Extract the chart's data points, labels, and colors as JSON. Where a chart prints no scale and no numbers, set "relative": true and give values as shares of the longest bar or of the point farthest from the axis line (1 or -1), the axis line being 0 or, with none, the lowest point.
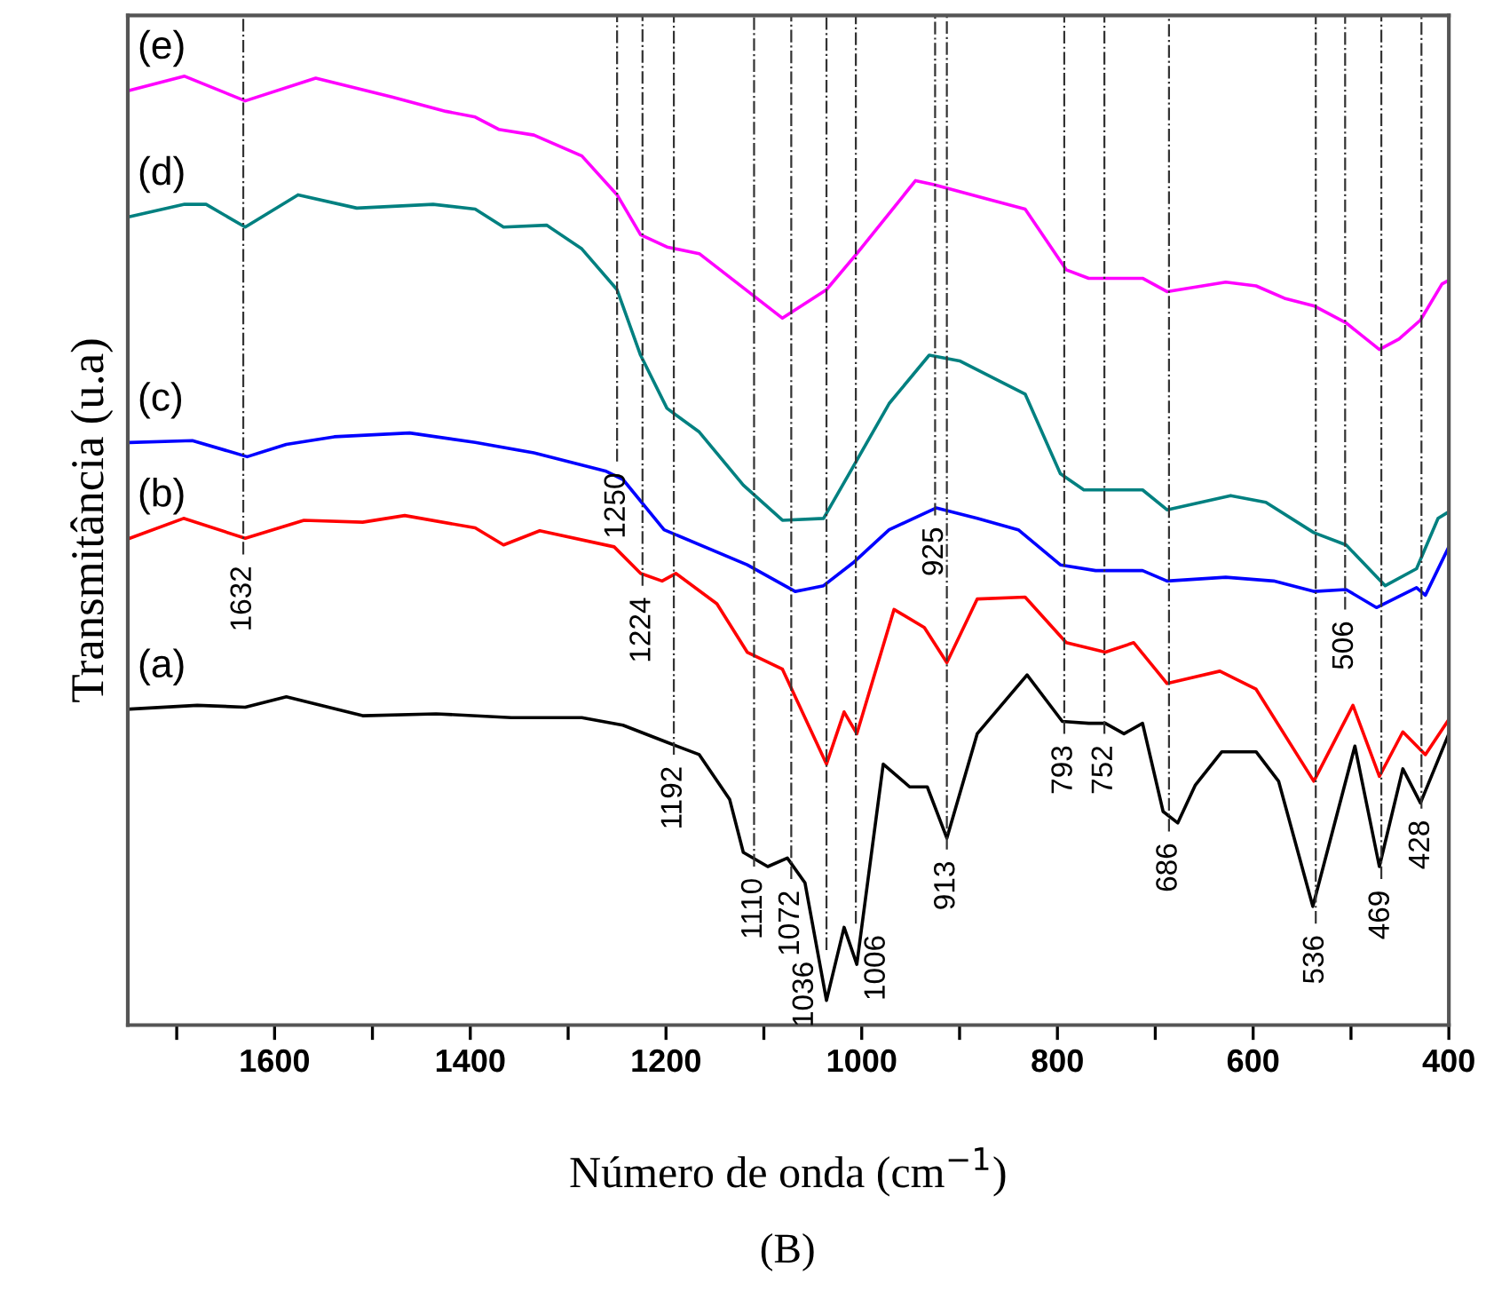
{
  "chart_data": {
    "type": "line",
    "relative": true,
    "xlabel": "Número de onda (cm$^{−1}$)",
    "ylabel": "Transmitância (u.a)",
    "xlim": [
      1750,
      400
    ],
    "xticks": [
      {
        "value": 1700,
        "label": null
      },
      1600,
      {
        "value": 1500,
        "label": null
      },
      1400,
      {
        "value": 1300,
        "label": null
      },
      1200,
      {
        "value": 1100,
        "label": null
      },
      1000,
      {
        "value": 900,
        "label": null
      },
      800,
      {
        "value": 700,
        "label": null
      },
      600,
      {
        "value": 500,
        "label": null
      },
      400
    ],
    "tick_labels": "x",
    "grid": false,
    "legend": false,
    "marker": "none",
    "line_style": "solid",
    "series": [
      {
        "name": "(a)",
        "color": "#000000",
        "x": [
          1748,
          1679,
          1630,
          1588,
          1510,
          1435,
          1358,
          1286,
          1244,
          1199,
          1166,
          1135,
          1121,
          1096,
          1076,
          1058,
          1036,
          1018,
          1005,
          978,
          951,
          933,
          913,
          882,
          831,
          795,
          768,
          751,
          732,
          713,
          692,
          677,
          659,
          632,
          597,
          574,
          539,
          496,
          471,
          447,
          429,
          400
        ],
        "values": [
          0.333,
          0.337,
          0.335,
          0.346,
          0.326,
          0.328,
          0.324,
          0.324,
          0.316,
          0.298,
          0.285,
          0.238,
          0.182,
          0.167,
          0.176,
          0.15,
          0.026,
          0.103,
          0.064,
          0.275,
          0.251,
          0.251,
          0.197,
          0.307,
          0.369,
          0.32,
          0.318,
          0.318,
          0.307,
          0.318,
          0.225,
          0.213,
          0.253,
          0.288,
          0.288,
          0.257,
          0.125,
          0.294,
          0.167,
          0.27,
          0.234,
          0.307
        ]
      },
      {
        "name": "(b)",
        "color": "#ff0000",
        "x": [
          1748,
          1693,
          1630,
          1570,
          1510,
          1467,
          1395,
          1366,
          1329,
          1253,
          1226,
          1204,
          1190,
          1148,
          1117,
          1081,
          1036,
          1018,
          1005,
          967,
          936,
          913,
          882,
          833,
          791,
          751,
          722,
          688,
          634,
          597,
          538,
          498,
          471,
          447,
          424,
          400
        ],
        "values": [
          0.513,
          0.534,
          0.513,
          0.532,
          0.53,
          0.537,
          0.524,
          0.506,
          0.521,
          0.504,
          0.476,
          0.468,
          0.476,
          0.444,
          0.393,
          0.375,
          0.275,
          0.33,
          0.307,
          0.438,
          0.419,
          0.382,
          0.449,
          0.451,
          0.403,
          0.393,
          0.403,
          0.36,
          0.373,
          0.354,
          0.257,
          0.337,
          0.262,
          0.309,
          0.285,
          0.322
        ]
      },
      {
        "name": "(c)",
        "color": "#0000ff",
        "x": [
          1748,
          1684,
          1628,
          1588,
          1539,
          1462,
          1395,
          1335,
          1262,
          1244,
          1202,
          1117,
          1068,
          1058,
          1039,
          1009,
          972,
          924,
          882,
          840,
          797,
          761,
          713,
          688,
          628,
          579,
          538,
          505,
          474,
          433,
          424,
          400
        ],
        "values": [
          0.614,
          0.616,
          0.599,
          0.612,
          0.62,
          0.624,
          0.614,
          0.603,
          0.584,
          0.575,
          0.522,
          0.485,
          0.457,
          0.459,
          0.463,
          0.487,
          0.522,
          0.545,
          0.534,
          0.522,
          0.485,
          0.479,
          0.479,
          0.468,
          0.472,
          0.468,
          0.457,
          0.459,
          0.44,
          0.461,
          0.453,
          0.504
        ]
      },
      {
        "name": "(d)",
        "color": "#008080",
        "x": [
          1748,
          1692,
          1670,
          1630,
          1576,
          1516,
          1438,
          1395,
          1366,
          1322,
          1286,
          1250,
          1226,
          1199,
          1166,
          1121,
          1081,
          1039,
          1009,
          972,
          931,
          900,
          833,
          797,
          773,
          713,
          688,
          623,
          587,
          538,
          505,
          465,
          433,
          411,
          400
        ],
        "values": [
          0.852,
          0.865,
          0.865,
          0.841,
          0.875,
          0.861,
          0.865,
          0.86,
          0.841,
          0.843,
          0.818,
          0.775,
          0.706,
          0.65,
          0.625,
          0.569,
          0.532,
          0.534,
          0.588,
          0.655,
          0.706,
          0.7,
          0.665,
          0.581,
          0.564,
          0.564,
          0.543,
          0.558,
          0.551,
          0.519,
          0.506,
          0.463,
          0.481,
          0.534,
          0.541
        ]
      },
      {
        "name": "(e)",
        "color": "#ff00ff",
        "x": [
          1748,
          1692,
          1630,
          1558,
          1480,
          1425,
          1395,
          1371,
          1335,
          1286,
          1250,
          1226,
          1199,
          1166,
          1121,
          1081,
          1036,
          1005,
          945,
          927,
          873,
          833,
          791,
          768,
          713,
          688,
          628,
          597,
          568,
          538,
          505,
          471,
          451,
          429,
          407,
          400
        ],
        "values": [
          0.985,
          1.0,
          0.974,
          0.998,
          0.978,
          0.963,
          0.957,
          0.944,
          0.938,
          0.916,
          0.875,
          0.833,
          0.82,
          0.813,
          0.777,
          0.745,
          0.775,
          0.813,
          0.89,
          0.886,
          0.871,
          0.86,
          0.796,
          0.787,
          0.787,
          0.773,
          0.783,
          0.779,
          0.766,
          0.758,
          0.74,
          0.712,
          0.723,
          0.743,
          0.781,
          0.785
        ]
      }
    ],
    "ref_lines": [
      {
        "axis": "x",
        "value": 1632
      },
      {
        "axis": "x",
        "value": 1250
      },
      {
        "axis": "x",
        "value": 1224
      },
      {
        "axis": "x",
        "value": 1192
      },
      {
        "axis": "x",
        "value": 1110
      },
      {
        "axis": "x",
        "value": 1072
      },
      {
        "axis": "x",
        "value": 1036
      },
      {
        "axis": "x",
        "value": 1006
      },
      {
        "axis": "x",
        "value": 925
      },
      {
        "axis": "x",
        "value": 913
      },
      {
        "axis": "x",
        "value": 793
      },
      {
        "axis": "x",
        "value": 752
      },
      {
        "axis": "x",
        "value": 686
      },
      {
        "axis": "x",
        "value": 536
      },
      {
        "axis": "x",
        "value": 506
      },
      {
        "axis": "x",
        "value": 469
      },
      {
        "axis": "x",
        "value": 428
      }
    ],
    "annotations": [
      {
        "text": "1632",
        "x": 1632,
        "y": 0.496
      },
      {
        "text": "1250",
        "x": 1250,
        "y": 0.594
      },
      {
        "text": "1224",
        "x": 1224,
        "y": 0.463
      },
      {
        "text": "1192",
        "x": 1192,
        "y": 0.285
      },
      {
        "text": "1110",
        "x": 1110,
        "y": 0.167
      },
      {
        "text": "1072",
        "x": 1072,
        "y": 0.154
      },
      {
        "text": "1036",
        "x": 1036,
        "y": 0.079
      },
      {
        "text": "1006",
        "x": 1006,
        "y": 0.107
      },
      {
        "text": "925",
        "x": 925,
        "y": 0.537
      },
      {
        "text": "913",
        "x": 913,
        "y": 0.185
      },
      {
        "text": "793",
        "x": 793,
        "y": 0.307
      },
      {
        "text": "752",
        "x": 752,
        "y": 0.307
      },
      {
        "text": "686",
        "x": 686,
        "y": 0.204
      },
      {
        "text": "536",
        "x": 536,
        "y": 0.107
      },
      {
        "text": "506",
        "x": 506,
        "y": 0.438
      },
      {
        "text": "469",
        "x": 469,
        "y": 0.154
      },
      {
        "text": "428",
        "x": 428,
        "y": 0.228
      },
      "(B)"
    ]
  }
}
